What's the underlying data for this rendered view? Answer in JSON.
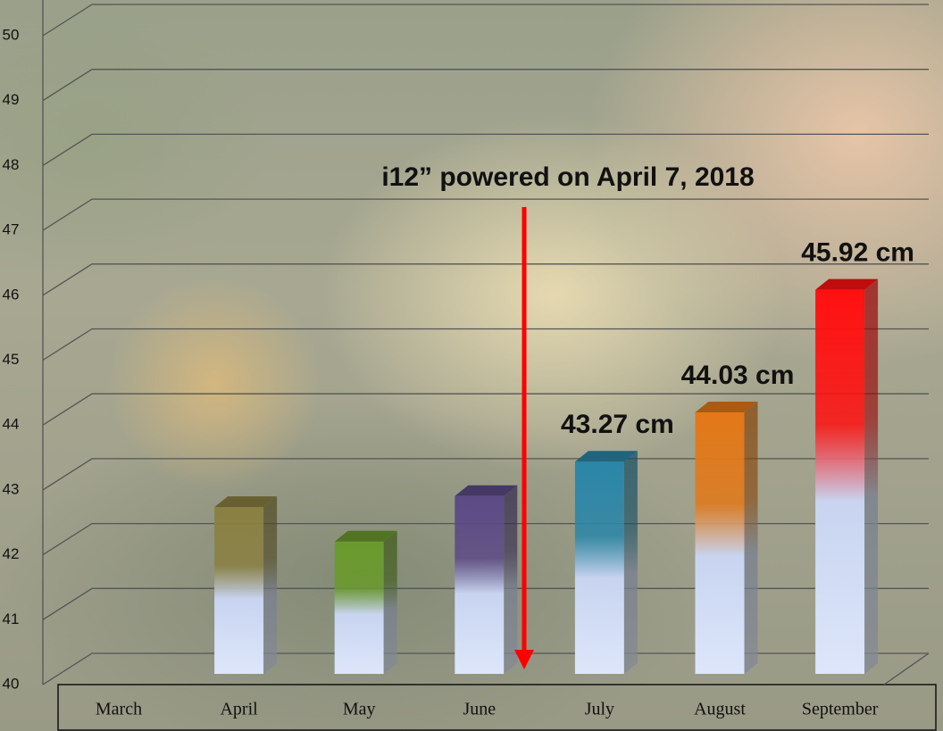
{
  "chart_data": {
    "type": "bar3d",
    "categories": [
      "March",
      "April",
      "May",
      "June",
      "July",
      "August",
      "September"
    ],
    "values": [
      null,
      42.57,
      42.04,
      42.74,
      43.27,
      44.03,
      45.92
    ],
    "value_labels": [
      null,
      null,
      null,
      null,
      "43.27 cm",
      "44.03 cm",
      "45.92 cm"
    ],
    "colors": [
      null,
      "#8a8042",
      "#6a9a2c",
      "#5c4a86",
      "#2a86a8",
      "#e27818",
      "#ff1010"
    ],
    "ylim": [
      40,
      50
    ],
    "yticks": [
      40,
      41,
      42,
      43,
      44,
      45,
      46,
      47,
      48,
      49,
      50
    ],
    "grid": true,
    "annotation": "i12” powered on April 7, 2018"
  }
}
